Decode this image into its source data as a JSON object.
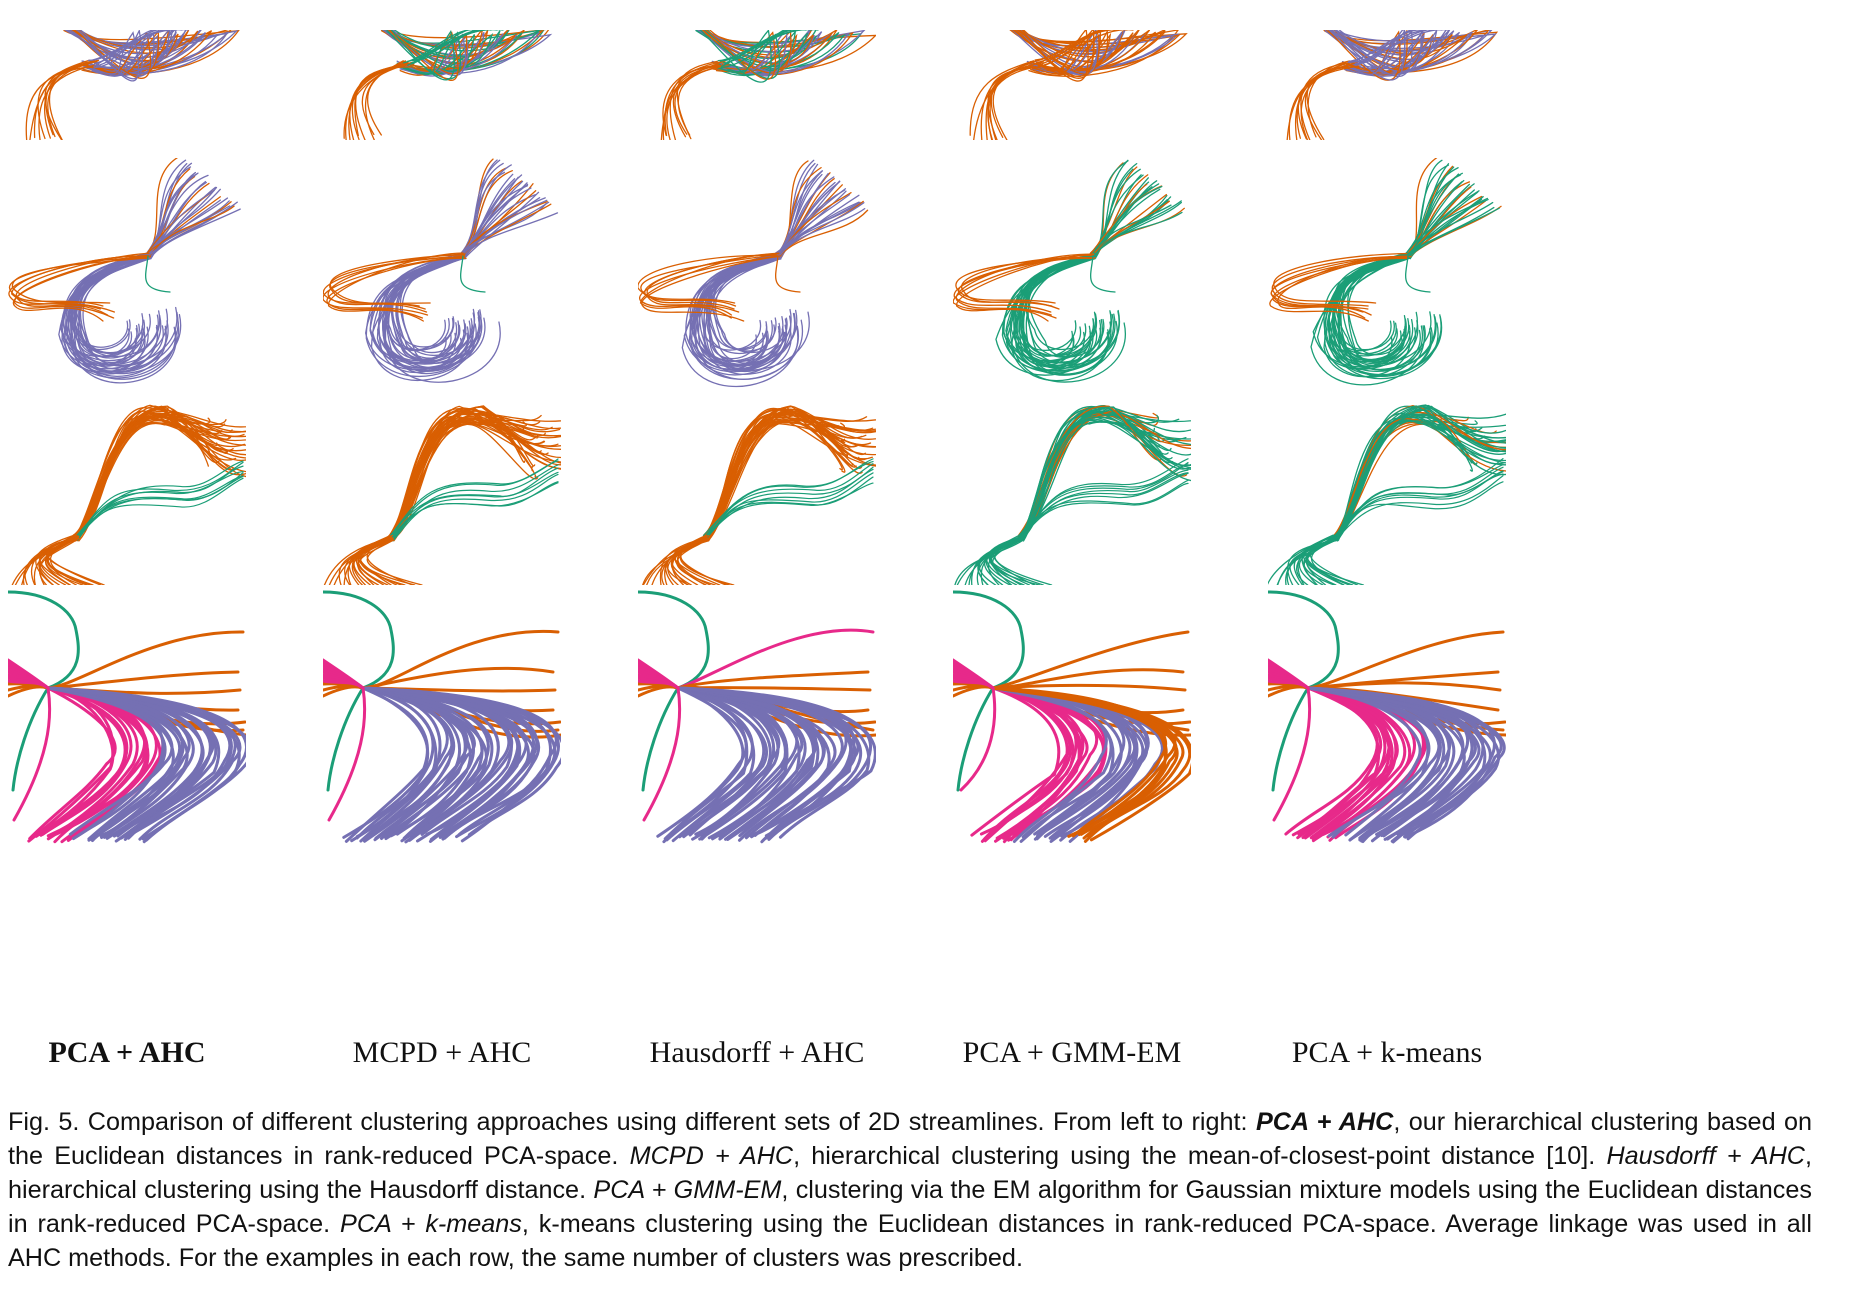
{
  "figure": {
    "colors": {
      "orange": "#d95f02",
      "purple": "#7570b3",
      "green": "#1b9e77",
      "pink": "#e7298a"
    },
    "columns": [
      {
        "label": "PCA + AHC",
        "bold": true
      },
      {
        "label": "MCPD + AHC",
        "bold": false
      },
      {
        "label": "Hausdorff + AHC",
        "bold": false
      },
      {
        "label": "PCA + GMM-EM",
        "bold": false
      },
      {
        "label": "PCA + k-means",
        "bold": false
      }
    ],
    "rows": [
      {
        "clusters": [
          "orange",
          "purple",
          "green"
        ],
        "dominant": [
          "purple",
          "green",
          "green",
          "orange",
          "purple"
        ]
      },
      {
        "clusters": [
          "orange",
          "purple",
          "green"
        ],
        "dominant": [
          "purple",
          "purple",
          "purple",
          "green",
          "green"
        ]
      },
      {
        "clusters": [
          "orange",
          "green"
        ],
        "dominant": [
          "orange",
          "orange",
          "orange",
          "green",
          "green"
        ]
      },
      {
        "clusters": [
          "green",
          "orange",
          "purple",
          "pink"
        ],
        "dominant": [
          "purple",
          "purple",
          "purple",
          "purple",
          "purple"
        ]
      }
    ]
  },
  "caption": {
    "lead": "Fig. 5.  Comparison of different clustering approaches using different sets of 2D streamlines.  From left to right: ",
    "m1": "PCA + AHC",
    "t1": ", our hierarchical clustering based on the Euclidean distances in rank-reduced PCA-space.  ",
    "m2": "MCPD + AHC",
    "t2": ", hierarchical clustering using the mean-of-closest-point distance [10].  ",
    "m3": "Hausdorff + AHC",
    "t3": ", hierarchical clustering using the Hausdorff distance.  ",
    "m4": "PCA + GMM-EM",
    "t4": ", clustering via the EM algorithm for Gaussian mixture models using the Euclidean distances in rank-reduced PCA-space.  ",
    "m5": "PCA + k-means",
    "t5": ", k-means clustering using the Euclidean distances in rank-reduced PCA-space.  Average linkage was used in all AHC methods.  For the examples in each row, the same number of clusters was prescribed."
  }
}
